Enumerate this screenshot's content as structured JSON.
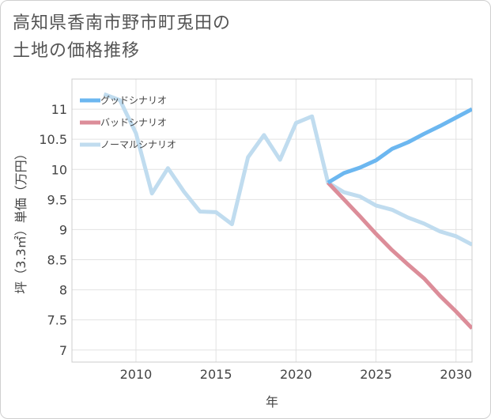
{
  "title": {
    "line1": "高知県香南市野市町兎田の",
    "line2": "土地の価格推移"
  },
  "chart_data": {
    "type": "line",
    "title": "高知県香南市野市町兎田の土地の価格推移",
    "xlabel": "年",
    "ylabel": "坪（3.3㎡）単価（万円）",
    "xlim": [
      2006,
      2031
    ],
    "ylim": [
      6.8,
      11.5
    ],
    "x_ticks": [
      2010,
      2015,
      2020,
      2025,
      2030
    ],
    "x_tick_labels": [
      "2010",
      "2015",
      "2020",
      "2025",
      "2030"
    ],
    "y_ticks": [
      7,
      7.5,
      8,
      8.5,
      9,
      9.5,
      10,
      10.5,
      11
    ],
    "y_tick_labels": [
      "7",
      "7.5",
      "8",
      "8.5",
      "9",
      "9.5",
      "10",
      "10.5",
      "11"
    ],
    "grid": true,
    "legend_position": "top-left",
    "series": [
      {
        "name": "グッドシナリオ",
        "color": "#6cb7f0",
        "x": [
          2022,
          2023,
          2024,
          2025,
          2026,
          2027,
          2028,
          2029,
          2030,
          2031
        ],
        "values": [
          9.78,
          9.94,
          10.03,
          10.15,
          10.34,
          10.45,
          10.59,
          10.72,
          10.86,
          11.0
        ]
      },
      {
        "name": "バッドシナリオ",
        "color": "#dc8d99",
        "x": [
          2022,
          2023,
          2024,
          2025,
          2026,
          2027,
          2028,
          2029,
          2030,
          2031
        ],
        "values": [
          9.78,
          9.5,
          9.22,
          8.93,
          8.66,
          8.42,
          8.19,
          7.9,
          7.64,
          7.36
        ]
      },
      {
        "name": "ノーマルシナリオ",
        "color": "#c0dcef",
        "x": [
          2008,
          2009,
          2010,
          2011,
          2012,
          2013,
          2014,
          2015,
          2016,
          2017,
          2018,
          2019,
          2020,
          2021,
          2022,
          2023,
          2024,
          2025,
          2026,
          2027,
          2028,
          2029,
          2030,
          2031
        ],
        "values": [
          11.25,
          11.15,
          10.6,
          9.6,
          10.02,
          9.63,
          9.3,
          9.29,
          9.09,
          10.2,
          10.57,
          10.16,
          10.77,
          10.88,
          9.78,
          9.62,
          9.55,
          9.4,
          9.33,
          9.2,
          9.1,
          8.97,
          8.89,
          8.75
        ]
      }
    ]
  }
}
